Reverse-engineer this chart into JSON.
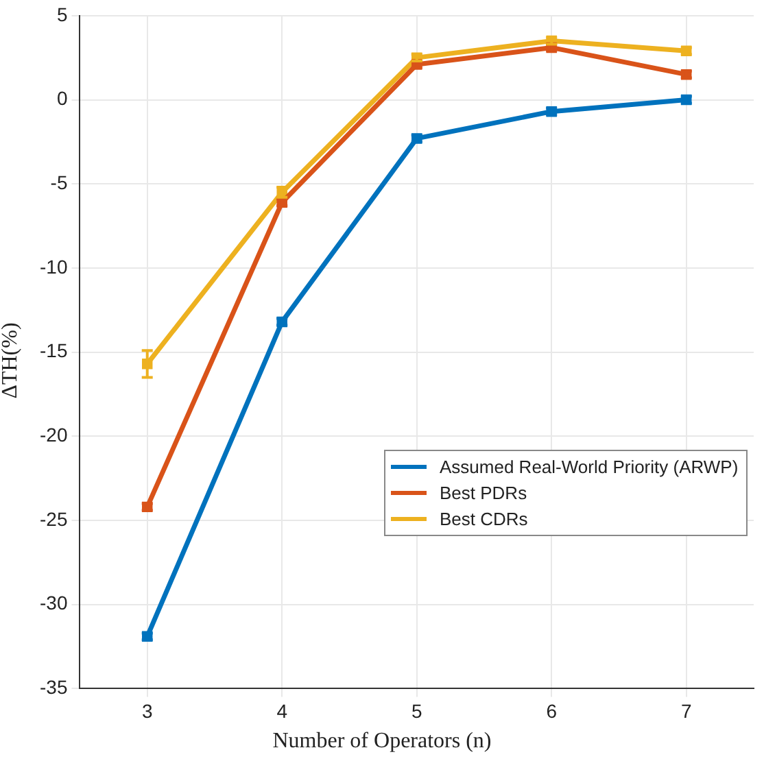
{
  "chart_data": {
    "type": "line",
    "xlabel": "Number of Operators (n)",
    "ylabel": "ΔTH(%)",
    "x": [
      3,
      4,
      5,
      6,
      7
    ],
    "series": [
      {
        "name": "Assumed Real-World Priority (ARWP)",
        "color": "#0072bd",
        "values": [
          -31.9,
          -13.2,
          -2.3,
          -0.7,
          0
        ],
        "errors": [
          0.2,
          0.2,
          0.2,
          0.2,
          0.2
        ]
      },
      {
        "name": "Best PDRs",
        "color": "#d95319",
        "values": [
          -24.2,
          -6.1,
          2.1,
          3.1,
          1.5
        ],
        "errors": [
          0.2,
          0.2,
          0.2,
          0.2,
          0.2
        ]
      },
      {
        "name": "Best CDRs",
        "color": "#edb120",
        "values": [
          -15.7,
          -5.5,
          2.5,
          3.5,
          2.9
        ],
        "errors": [
          0.8,
          0.3,
          0.2,
          0.2,
          0.2
        ]
      }
    ],
    "xlim": [
      2.5,
      7.5
    ],
    "xticks": [
      3,
      4,
      5,
      6,
      7
    ],
    "ylim": [
      -35,
      5
    ],
    "yticks": [
      -35,
      -30,
      -25,
      -20,
      -15,
      -10,
      -5,
      0,
      5
    ],
    "grid": true,
    "legend": "bottom right",
    "marker": "square",
    "line_style": "solid"
  }
}
